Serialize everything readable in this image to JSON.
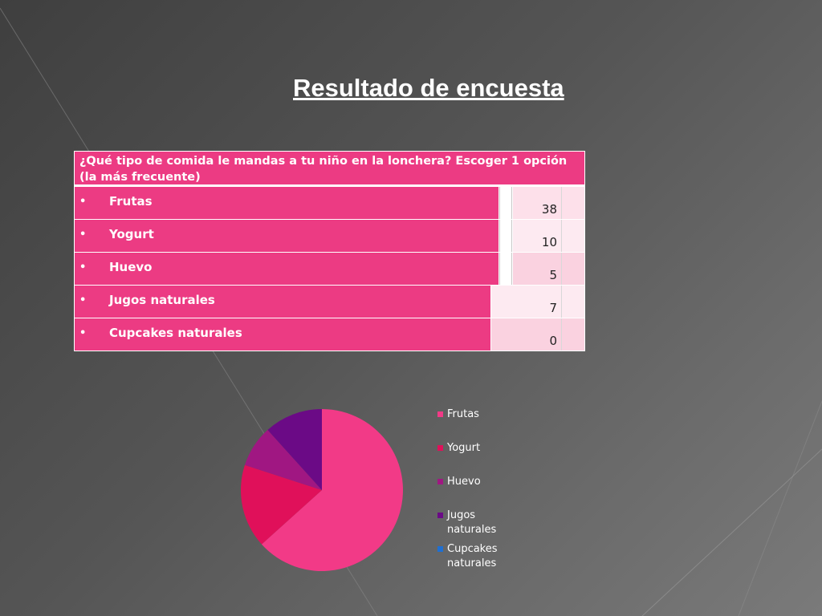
{
  "title": "Resultado de encuesta",
  "table": {
    "question": "¿Qué tipo de comida le mandas a tu niño en la lonchera? Escoger 1 opción (la más frecuente)",
    "bullet": "•",
    "rows": [
      {
        "label": "Frutas",
        "value": "38"
      },
      {
        "label": "Yogurt",
        "value": "10"
      },
      {
        "label": "Huevo",
        "value": "5"
      },
      {
        "label": "Jugos naturales",
        "value": "7"
      },
      {
        "label": "Cupcakes naturales",
        "value": "0"
      }
    ]
  },
  "chart_data": {
    "type": "pie",
    "title": "",
    "categories": [
      "Frutas",
      "Yogurt",
      "Huevo",
      "Jugos naturales",
      "Cupcakes naturales"
    ],
    "values": [
      38,
      10,
      5,
      7,
      0
    ],
    "colors": [
      "#f23a87",
      "#e0105a",
      "#a01782",
      "#6b0a86",
      "#1f6fd1"
    ],
    "legend": "right"
  }
}
